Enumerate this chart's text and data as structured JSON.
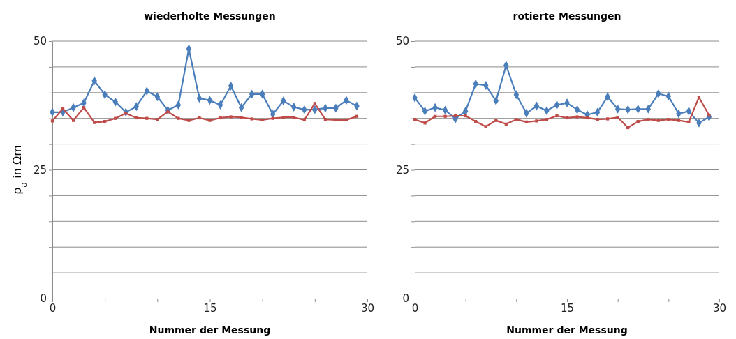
{
  "chart_data": [
    {
      "type": "line",
      "title": "wiederholte Messungen",
      "xlabel": "Nummer der Messung",
      "ylabel": "ρ$_{a}$ in Ωm",
      "x": [
        0,
        1,
        2,
        3,
        4,
        5,
        6,
        7,
        8,
        9,
        10,
        11,
        12,
        13,
        14,
        15,
        16,
        17,
        18,
        19,
        20,
        21,
        22,
        23,
        24,
        25,
        26,
        27,
        28,
        29
      ],
      "series": [
        {
          "color": "#4a7ebb",
          "marker": "diamond",
          "values": [
            36.2,
            36.2,
            37.1,
            38.0,
            42.3,
            39.6,
            38.2,
            36.2,
            37.3,
            40.3,
            39.2,
            36.6,
            37.6,
            48.5,
            38.9,
            38.5,
            37.6,
            41.3,
            37.1,
            39.7,
            39.7,
            35.8,
            38.4,
            37.2,
            36.7,
            36.7,
            37.0,
            37.0,
            38.5,
            37.4
          ]
        },
        {
          "color": "#be4b48",
          "marker": "square",
          "values": [
            34.5,
            36.9,
            34.6,
            37.1,
            34.2,
            34.4,
            35.0,
            36.0,
            35.1,
            35.0,
            34.8,
            36.3,
            35.0,
            34.6,
            35.1,
            34.6,
            35.1,
            35.3,
            35.2,
            34.9,
            34.7,
            35.0,
            35.2,
            35.2,
            34.7,
            37.9,
            34.8,
            34.7,
            34.7,
            35.4
          ]
        }
      ],
      "xlim": [
        0,
        30
      ],
      "xticks": [
        0,
        {
          "value": 5,
          "label": null
        },
        {
          "value": 10,
          "label": null
        },
        15,
        {
          "value": 20,
          "label": null
        },
        {
          "value": 25,
          "label": null
        },
        30
      ],
      "ylim": [
        0,
        50
      ],
      "yticks": [
        0,
        {
          "value": 5,
          "label": null
        },
        {
          "value": 10,
          "label": null
        },
        {
          "value": 15,
          "label": null
        },
        {
          "value": 20,
          "label": null
        },
        25,
        {
          "value": 30,
          "label": null
        },
        {
          "value": 35,
          "label": null
        },
        {
          "value": 40,
          "label": null
        },
        {
          "value": 45,
          "label": null
        },
        50
      ],
      "grid": "y",
      "line_style": "solid"
    },
    {
      "type": "line",
      "title": "rotierte Messungen",
      "xlabel": "Nummer der Messung",
      "x": [
        0,
        1,
        2,
        3,
        4,
        5,
        6,
        7,
        8,
        9,
        10,
        11,
        12,
        13,
        14,
        15,
        16,
        17,
        18,
        19,
        20,
        21,
        22,
        23,
        24,
        25,
        26,
        27,
        28,
        29
      ],
      "series": [
        {
          "color": "#4a7ebb",
          "marker": "diamond",
          "values": [
            39.0,
            36.4,
            37.1,
            36.6,
            34.9,
            36.4,
            41.7,
            41.4,
            38.4,
            45.3,
            39.6,
            36.0,
            37.4,
            36.5,
            37.6,
            38.0,
            36.7,
            35.7,
            36.2,
            39.2,
            36.8,
            36.7,
            36.8,
            36.8,
            39.8,
            39.3,
            35.9,
            36.4,
            34.1,
            35.3
          ]
        },
        {
          "color": "#be4b48",
          "marker": "square",
          "values": [
            34.8,
            34.1,
            35.4,
            35.4,
            35.5,
            35.5,
            34.4,
            33.4,
            34.6,
            33.9,
            34.8,
            34.3,
            34.5,
            34.8,
            35.5,
            35.1,
            35.3,
            35.1,
            34.8,
            34.9,
            35.2,
            33.2,
            34.4,
            34.8,
            34.6,
            34.8,
            34.6,
            34.3,
            39.1,
            35.6
          ]
        }
      ],
      "xlim": [
        0,
        30
      ],
      "xticks": [
        0,
        {
          "value": 5,
          "label": null
        },
        {
          "value": 10,
          "label": null
        },
        15,
        {
          "value": 20,
          "label": null
        },
        {
          "value": 25,
          "label": null
        },
        30
      ],
      "ylim": [
        0,
        50
      ],
      "yticks": [
        0,
        {
          "value": 5,
          "label": null
        },
        {
          "value": 10,
          "label": null
        },
        {
          "value": 15,
          "label": null
        },
        {
          "value": 20,
          "label": null
        },
        25,
        {
          "value": 30,
          "label": null
        },
        {
          "value": 35,
          "label": null
        },
        {
          "value": 40,
          "label": null
        },
        {
          "value": 45,
          "label": null
        },
        50
      ],
      "grid": "y",
      "line_style": "solid"
    }
  ]
}
